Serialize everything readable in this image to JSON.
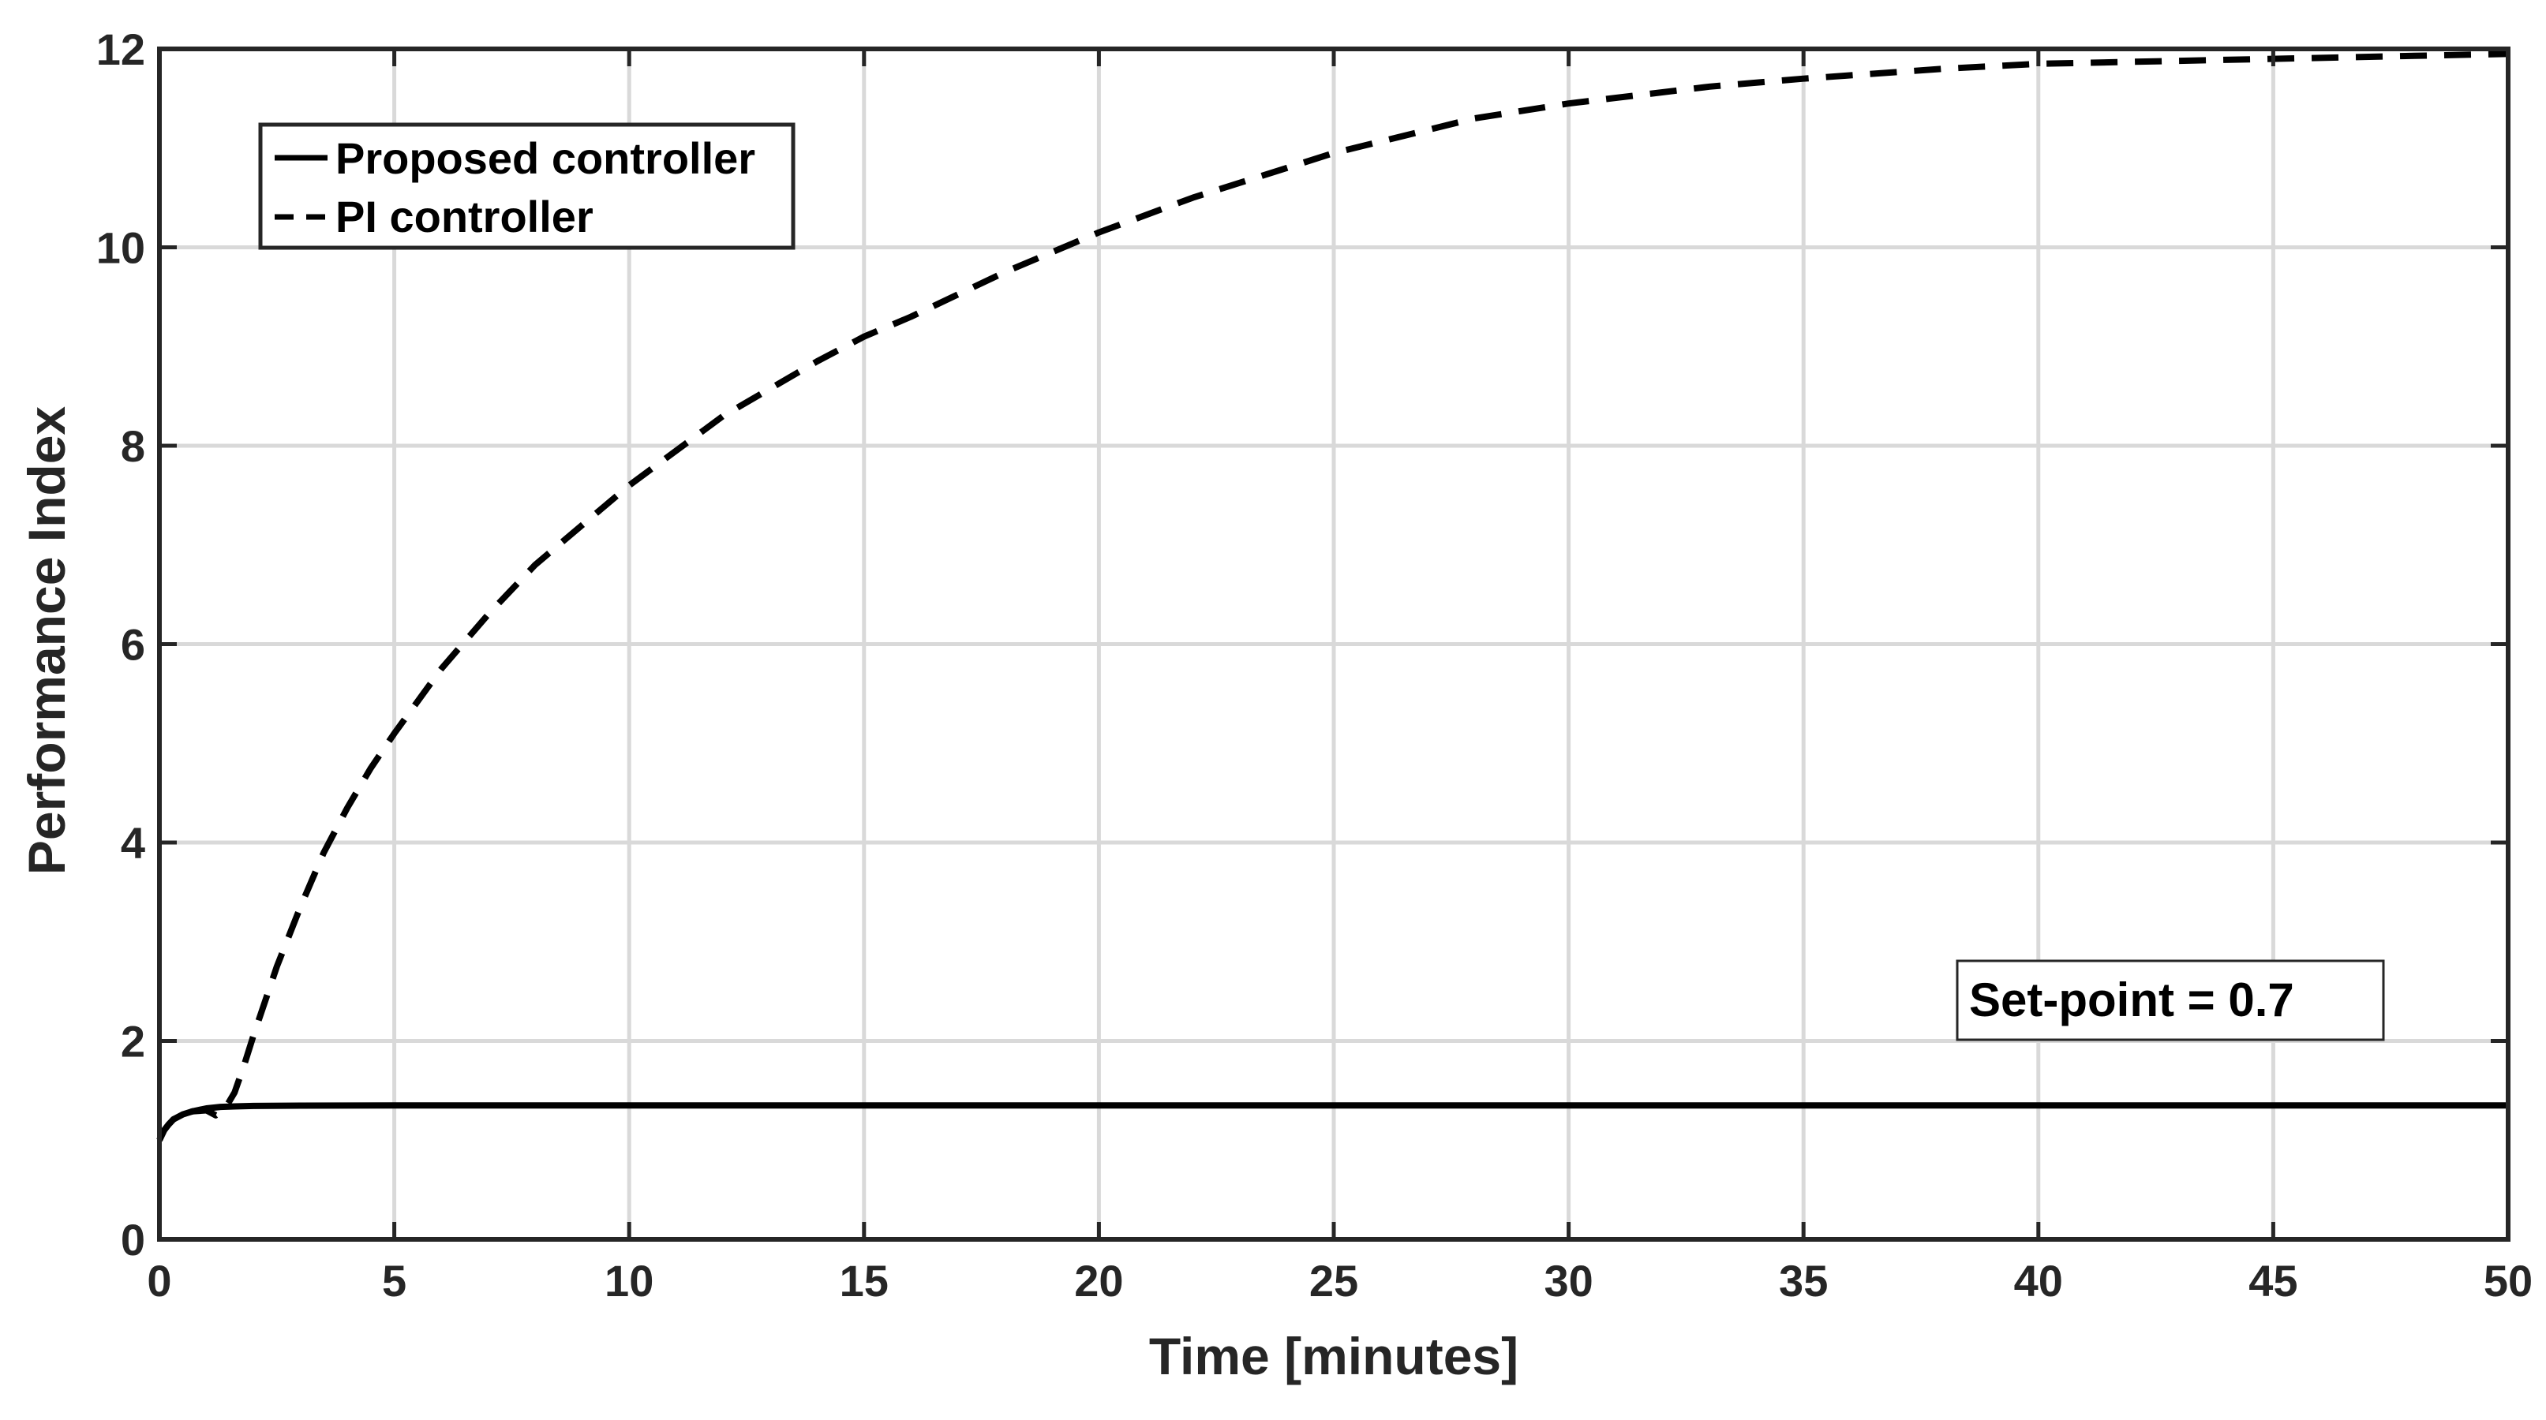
{
  "chart_data": {
    "type": "line",
    "xlabel": "Time [minutes]",
    "ylabel": "Performance Index",
    "xlim": [
      0,
      50
    ],
    "ylim": [
      0,
      12
    ],
    "xticks": [
      0,
      5,
      10,
      15,
      20,
      25,
      30,
      35,
      40,
      45,
      50
    ],
    "yticks": [
      0,
      2,
      4,
      6,
      8,
      10,
      12
    ],
    "grid": true,
    "legend_placement": "top-left",
    "annotation": "Set-point = 0.7",
    "series": [
      {
        "name": "Proposed controller",
        "style": "solid",
        "color": "#000000",
        "x": [
          0,
          0.1,
          0.2,
          0.3,
          0.5,
          0.7,
          1.0,
          1.3,
          1.6,
          2.0,
          3.0,
          5.0,
          10,
          15,
          20,
          25,
          30,
          35,
          40,
          45,
          50
        ],
        "y": [
          1.0,
          1.1,
          1.16,
          1.21,
          1.26,
          1.29,
          1.32,
          1.335,
          1.34,
          1.345,
          1.348,
          1.35,
          1.35,
          1.35,
          1.35,
          1.35,
          1.35,
          1.35,
          1.35,
          1.35,
          1.35
        ]
      },
      {
        "name": "PI controller",
        "style": "dashed",
        "color": "#000000",
        "x": [
          0,
          0.1,
          0.2,
          0.3,
          0.5,
          0.7,
          1.0,
          1.2,
          1.4,
          1.6,
          1.8,
          2.0,
          2.5,
          3.0,
          3.5,
          4.0,
          4.5,
          5,
          6,
          7,
          8,
          9,
          10,
          12,
          14,
          15,
          16,
          18,
          20,
          22,
          25,
          28,
          30,
          33,
          35,
          38,
          40,
          43,
          45,
          48,
          50
        ],
        "y": [
          1.0,
          1.1,
          1.16,
          1.21,
          1.26,
          1.29,
          1.3,
          1.25,
          1.32,
          1.48,
          1.75,
          2.05,
          2.75,
          3.35,
          3.9,
          4.35,
          4.75,
          5.1,
          5.75,
          6.3,
          6.8,
          7.2,
          7.6,
          8.3,
          8.85,
          9.1,
          9.3,
          9.75,
          10.15,
          10.5,
          10.95,
          11.3,
          11.45,
          11.62,
          11.7,
          11.8,
          11.85,
          11.88,
          11.9,
          11.93,
          11.95
        ]
      }
    ]
  }
}
